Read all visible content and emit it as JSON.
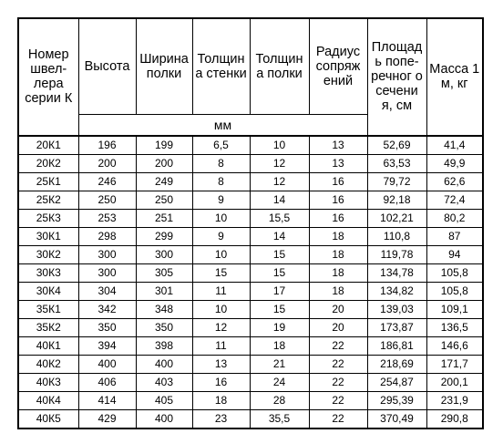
{
  "header": {
    "number": "Номер швел-лера серии К",
    "height": "Высота",
    "flange_width": "Ширина полки",
    "web_thickness": "Толщин а стенки",
    "flange_thickness": "Толщин а полки",
    "radius": "Радиус сопряж ений",
    "area": "Площад ь попе-речног о сечени я, см",
    "mass": "Масса 1 м, кг",
    "unit_mm": "мм"
  },
  "rows": [
    [
      "20К1",
      "196",
      "199",
      "6,5",
      "10",
      "13",
      "52,69",
      "41,4"
    ],
    [
      "20К2",
      "200",
      "200",
      "8",
      "12",
      "13",
      "63,53",
      "49,9"
    ],
    [
      "25К1",
      "246",
      "249",
      "8",
      "12",
      "16",
      "79,72",
      "62,6"
    ],
    [
      "25К2",
      "250",
      "250",
      "9",
      "14",
      "16",
      "92,18",
      "72,4"
    ],
    [
      "25К3",
      "253",
      "251",
      "10",
      "15,5",
      "16",
      "102,21",
      "80,2"
    ],
    [
      "30К1",
      "298",
      "299",
      "9",
      "14",
      "18",
      "110,8",
      "87"
    ],
    [
      "30К2",
      "300",
      "300",
      "10",
      "15",
      "18",
      "119,78",
      "94"
    ],
    [
      "30К3",
      "300",
      "305",
      "15",
      "15",
      "18",
      "134,78",
      "105,8"
    ],
    [
      "30К4",
      "304",
      "301",
      "11",
      "17",
      "18",
      "134,82",
      "105,8"
    ],
    [
      "35К1",
      "342",
      "348",
      "10",
      "15",
      "20",
      "139,03",
      "109,1"
    ],
    [
      "35К2",
      "350",
      "350",
      "12",
      "19",
      "20",
      "173,87",
      "136,5"
    ],
    [
      "40К1",
      "394",
      "398",
      "11",
      "18",
      "22",
      "186,81",
      "146,6"
    ],
    [
      "40К2",
      "400",
      "400",
      "13",
      "21",
      "22",
      "218,69",
      "171,7"
    ],
    [
      "40К3",
      "406",
      "403",
      "16",
      "24",
      "22",
      "254,87",
      "200,1"
    ],
    [
      "40К4",
      "414",
      "405",
      "18",
      "28",
      "22",
      "295,39",
      "231,9"
    ],
    [
      "40К5",
      "429",
      "400",
      "23",
      "35,5",
      "22",
      "370,49",
      "290,8"
    ]
  ]
}
